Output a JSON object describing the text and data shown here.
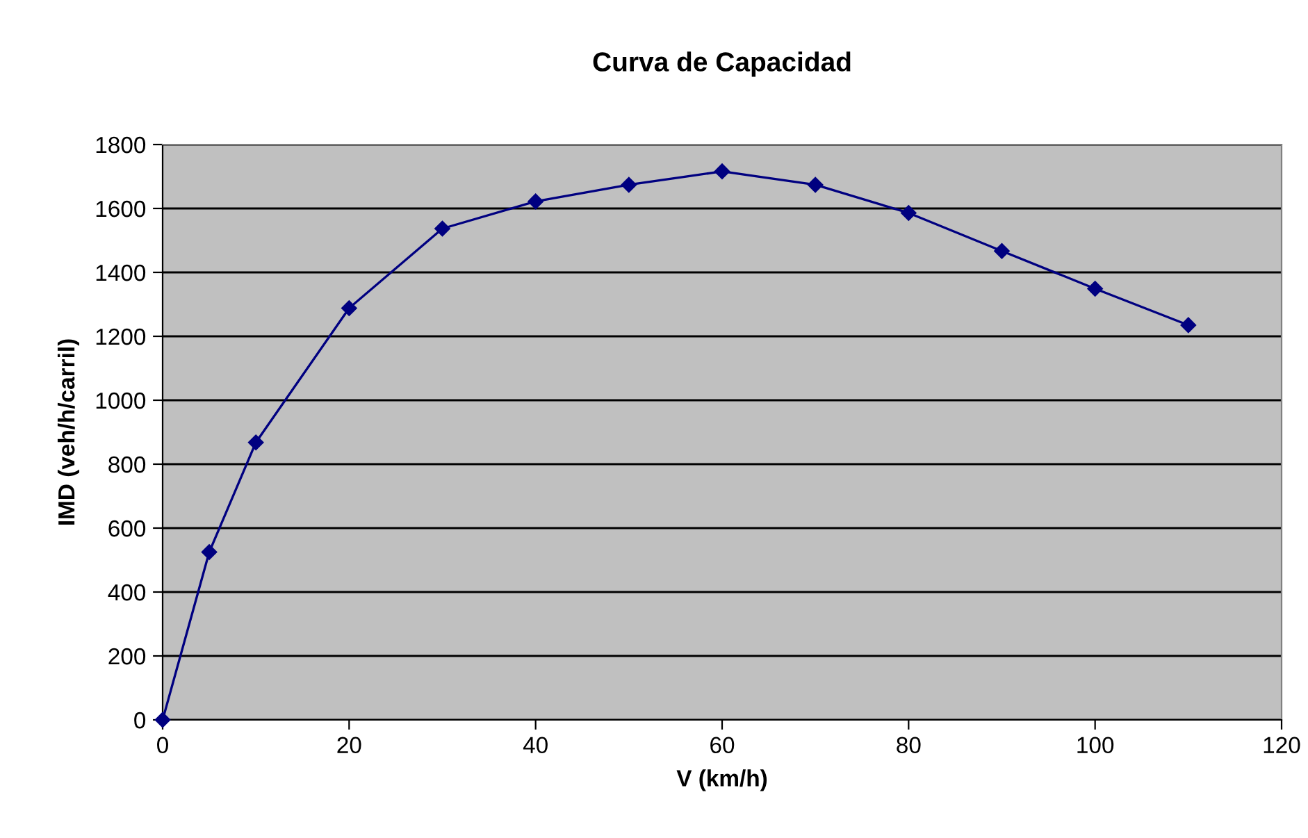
{
  "chart_data": {
    "type": "line",
    "title": "Curva de Capacidad",
    "xlabel": "V (km/h)",
    "ylabel": "IMD (veh/h/carril)",
    "x": [
      0,
      5,
      10,
      20,
      30,
      40,
      50,
      60,
      70,
      80,
      90,
      100,
      110
    ],
    "series": [
      {
        "color": "#000080",
        "values": [
          0,
          525,
          868,
          1288,
          1537,
          1622,
          1674,
          1716,
          1674,
          1586,
          1467,
          1349,
          1235
        ]
      }
    ],
    "xlim": [
      0,
      120
    ],
    "xticks": [
      0,
      20,
      40,
      60,
      80,
      100,
      120
    ],
    "ylim": [
      0,
      1800
    ],
    "yticks": [
      0,
      200,
      400,
      600,
      800,
      1000,
      1200,
      1400,
      1600,
      1800
    ],
    "grid": "y",
    "marker": "diamond",
    "line_style": "solid"
  }
}
